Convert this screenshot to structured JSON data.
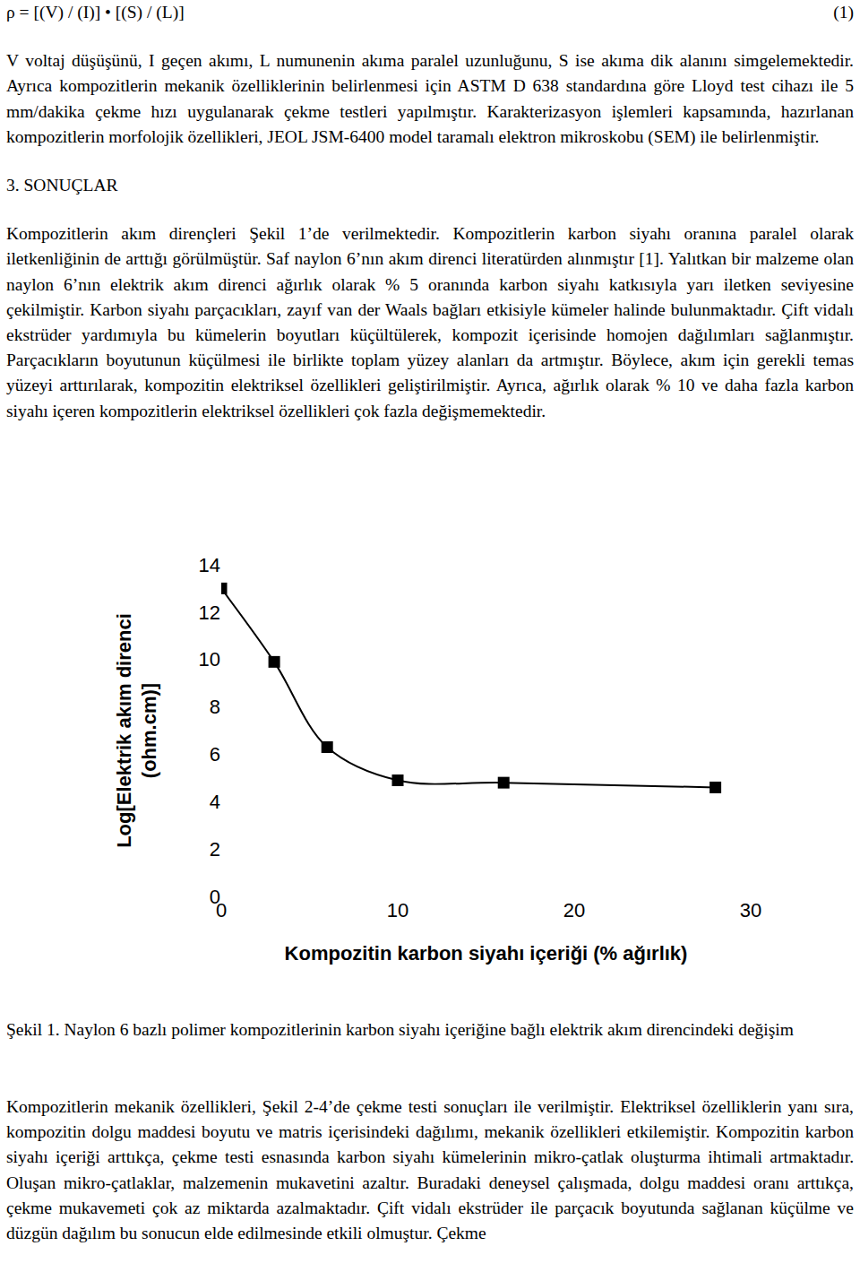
{
  "page": {
    "equation": {
      "text": "ρ = [(V) / (I)] • [(S) / (L)]",
      "number": "(1)"
    },
    "paragraphs_before": [
      "V voltaj düşüşünü, I geçen akımı, L numunenin akıma paralel uzunluğunu, S ise akıma dik alanını simgelemektedir. Ayrıca kompozitlerin mekanik özelliklerinin belirlenmesi için ASTM D 638 standardına göre Lloyd test cihazı ile 5 mm/dakika çekme hızı uygulanarak çekme testleri yapılmıştır. Karakterizasyon işlemleri kapsamında, hazırlanan kompozitlerin morfolojik özellikleri, JEOL JSM-6400 model taramalı elektron mikroskobu (SEM) ile belirlenmiştir."
    ],
    "heading": "3. SONUÇLAR",
    "paragraphs_after_heading": [
      "Kompozitlerin akım dirençleri Şekil 1’de verilmektedir. Kompozitlerin karbon siyahı oranına paralel olarak iletkenliğinin de arttığı görülmüştür. Saf naylon 6’nın akım direnci literatürden alınmıştır [1]. Yalıtkan bir malzeme olan naylon 6’nın elektrik akım direnci ağırlık olarak % 5 oranında karbon siyahı katkısıyla yarı iletken seviyesine çekilmiştir. Karbon siyahı parçacıkları, zayıf van der Waals bağları etkisiyle kümeler halinde bulunmaktadır. Çift vidalı ekstrüder yardımıyla bu kümelerin boyutları küçültülerek, kompozit içerisinde homojen dağılımları sağlanmıştır. Parçacıkların boyutunun küçülmesi ile birlikte toplam yüzey alanları da artmıştır. Böylece, akım için gerekli temas yüzeyi arttırılarak, kompozitin elektriksel özellikleri geliştirilmiştir. Ayrıca, ağırlık olarak % 10 ve daha fazla karbon siyahı içeren kompozitlerin elektriksel özellikleri çok fazla değişmemektedir."
    ],
    "figure_caption": "Şekil 1. Naylon 6 bazlı polimer kompozitlerinin karbon siyahı içeriğine bağlı elektrik akım direncindeki değişim",
    "paragraphs_after_figure": [
      "Kompozitlerin mekanik özellikleri, Şekil 2-4’de çekme testi sonuçları ile verilmiştir. Elektriksel özelliklerin yanı sıra, kompozitin dolgu maddesi boyutu ve matris içerisindeki dağılımı, mekanik özellikleri etkilemiştir. Kompozitin karbon siyahı içeriği arttıkça, çekme testi esnasında karbon siyahı kümelerinin mikro-çatlak oluşturma ihtimali artmaktadır. Oluşan mikro-çatlaklar, malzemenin mukavetini azaltır. Buradaki deneysel çalışmada, dolgu maddesi oranı arttıkça, çekme mukavemeti çok az miktarda azalmaktadır. Çift vidalı ekstrüder ile parçacık boyutunda sağlanan küçülme ve düzgün dağılım bu sonucun elde edilmesinde etkili olmuştur. Çekme"
    ]
  },
  "chart_data": {
    "type": "line",
    "x_label": "Kompozitin karbon siyahı içeriği (% ağırlık)",
    "y_label": [
      "Log[Elektrik akım direnci",
      "(ohm.cm)]"
    ],
    "x": [
      0,
      3,
      6,
      10,
      16,
      28
    ],
    "values": [
      13,
      9.9,
      6.3,
      4.9,
      4.8,
      4.6
    ],
    "xlim": [
      0,
      30
    ],
    "xticks": [
      0,
      10,
      20,
      30
    ],
    "ylim": [
      0,
      14
    ],
    "yticks": [
      0,
      2,
      4,
      6,
      8,
      10,
      12,
      14
    ],
    "color": "#000000",
    "marker": "square",
    "line_style": "smooth",
    "grid": false
  }
}
